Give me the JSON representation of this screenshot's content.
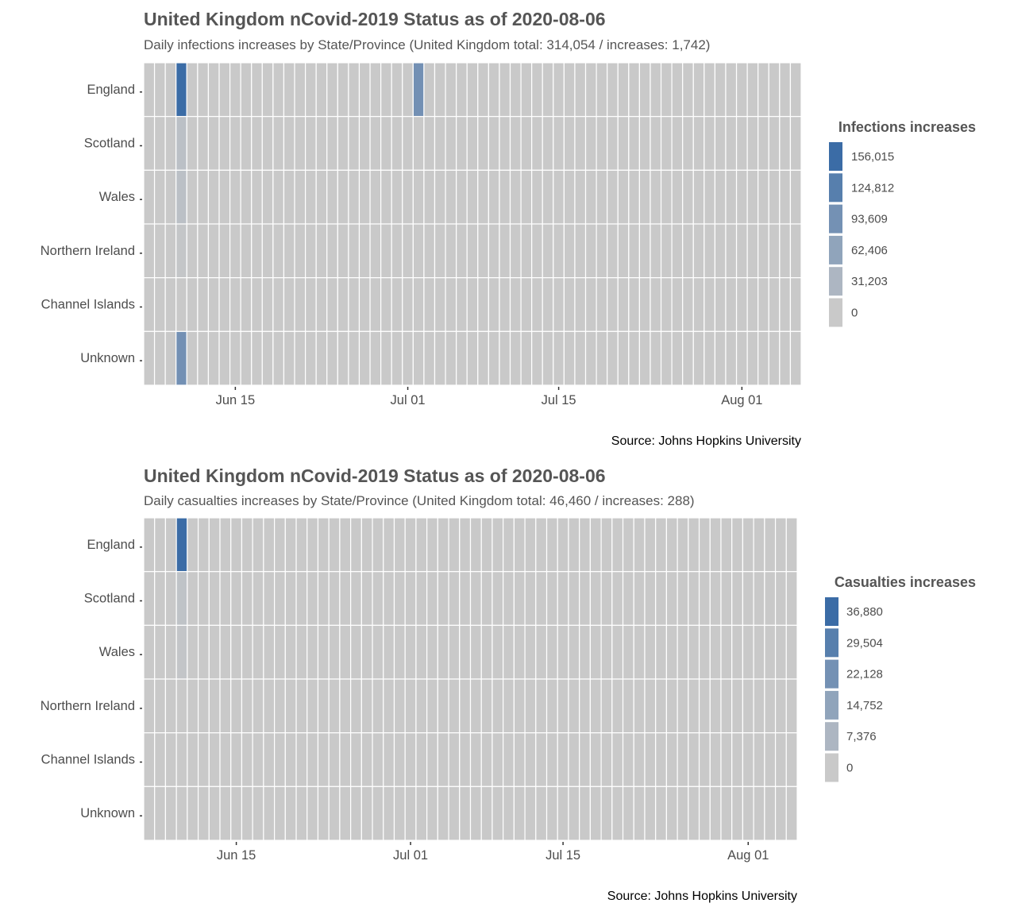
{
  "charts": [
    {
      "title": "United Kingdom nCovid-2019 Status as of 2020-08-06",
      "subtitle": "Daily infections increases by State/Province (United Kingdom total: 314,054 / increases: 1,742)",
      "caption": "Source: Johns Hopkins University",
      "legend_title": "Infections increases",
      "legend_labels": [
        "156,015",
        "124,812",
        "93,609",
        "62,406",
        "31,203",
        "0"
      ],
      "legend_colors": [
        "#3B6CA6",
        "#5578AB",
        "#7187B1",
        "#8D9BB6",
        "#ABB3BE",
        "#C9C9C9"
      ],
      "rows": [
        "England",
        "Scotland",
        "Wales",
        "Northern Ireland",
        "Channel Islands",
        "Unknown"
      ],
      "x_ticks": [
        "Jun 15",
        "Jul 01",
        "Jul 15",
        "Aug 01"
      ]
    },
    {
      "title": "United Kingdom nCovid-2019 Status as of 2020-08-06",
      "subtitle": "Daily casualties increases by State/Province (United Kingdom total: 46,460 / increases: 288)",
      "caption": "Source: Johns Hopkins University",
      "legend_title": "Casualties increases",
      "legend_labels": [
        "36,880",
        "29,504",
        "22,128",
        "14,752",
        "7,376",
        "0"
      ],
      "legend_colors": [
        "#3B6CA6",
        "#5578AB",
        "#7187B1",
        "#8D9BB6",
        "#ABB3BE",
        "#C9C9C9"
      ],
      "rows": [
        "England",
        "Scotland",
        "Wales",
        "Northern Ireland",
        "Channel Islands",
        "Unknown"
      ],
      "x_ticks": [
        "Jun 15",
        "Jul 01",
        "Jul 15",
        "Aug 01"
      ]
    }
  ],
  "chart_data": [
    {
      "type": "heatmap",
      "title": "United Kingdom nCovid-2019 Status as of 2020-08-06",
      "subtitle": "Daily infections increases by State/Province (United Kingdom total: 314,054 / increases: 1,742)",
      "x_type": "date",
      "x_start": "2020-06-07",
      "x_end": "2020-08-06",
      "x_ticks": [
        "Jun 15",
        "Jul 01",
        "Jul 15",
        "Aug 01"
      ],
      "y_categories": [
        "England",
        "Scotland",
        "Wales",
        "Northern Ireland",
        "Channel Islands",
        "Unknown"
      ],
      "default_value": 0,
      "cells": [
        {
          "row": "England",
          "date": "2020-06-10",
          "value": 156015
        },
        {
          "row": "Scotland",
          "date": "2020-06-10",
          "value": 15000
        },
        {
          "row": "Wales",
          "date": "2020-06-10",
          "value": 15000
        },
        {
          "row": "Northern Ireland",
          "date": "2020-06-10",
          "value": 5000
        },
        {
          "row": "Unknown",
          "date": "2020-06-10",
          "value": 95000
        },
        {
          "row": "England",
          "date": "2020-07-02",
          "value": 95000
        }
      ],
      "legend": {
        "title": "Infections increases",
        "breaks": [
          156015,
          124812,
          93609,
          62406,
          31203,
          0
        ],
        "position": "right"
      },
      "color_low": "#C9C9C9",
      "color_high": "#3B6CA6",
      "caption": "Source: Johns Hopkins University"
    },
    {
      "type": "heatmap",
      "title": "United Kingdom nCovid-2019 Status as of 2020-08-06",
      "subtitle": "Daily casualties increases by State/Province (United Kingdom total: 46,460 / increases: 288)",
      "x_type": "date",
      "x_start": "2020-06-07",
      "x_end": "2020-08-05",
      "x_ticks": [
        "Jun 15",
        "Jul 01",
        "Jul 15",
        "Aug 01"
      ],
      "y_categories": [
        "England",
        "Scotland",
        "Wales",
        "Northern Ireland",
        "Channel Islands",
        "Unknown"
      ],
      "default_value": 0,
      "cells": [
        {
          "row": "England",
          "date": "2020-06-10",
          "value": 36880
        },
        {
          "row": "Scotland",
          "date": "2020-06-10",
          "value": 2500
        },
        {
          "row": "Wales",
          "date": "2020-06-10",
          "value": 1500
        }
      ],
      "legend": {
        "title": "Casualties increases",
        "breaks": [
          36880,
          29504,
          22128,
          14752,
          7376,
          0
        ],
        "position": "right"
      },
      "color_low": "#C9C9C9",
      "color_high": "#3B6CA6",
      "caption": "Source: Johns Hopkins University"
    }
  ]
}
